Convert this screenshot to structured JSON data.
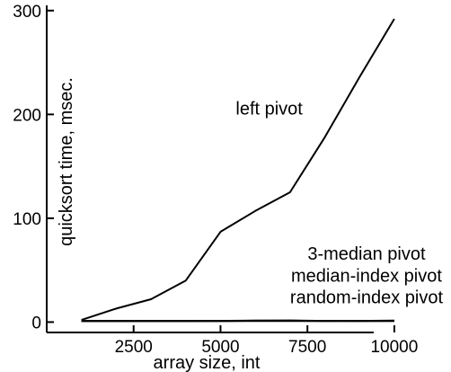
{
  "chart_data": {
    "type": "line",
    "title": "",
    "xlabel": "array size, int",
    "ylabel": "quicksort time, msec.",
    "xlim": [
      0,
      10700
    ],
    "ylim": [
      -10,
      305
    ],
    "xticks": [
      2500,
      5000,
      7500,
      10000
    ],
    "yticks": [
      0,
      100,
      200,
      300
    ],
    "grid": false,
    "series": [
      {
        "x": [
          1000,
          2000,
          3000,
          4000,
          5000,
          6000,
          7000,
          8000,
          9000,
          10000
        ],
        "values": [
          2,
          13,
          22,
          40,
          87,
          107,
          125,
          178,
          236,
          292
        ]
      },
      {
        "x": [
          1000,
          2000,
          3000,
          4000,
          5000,
          6000,
          7000,
          8000,
          9000,
          10000
        ],
        "values": [
          1,
          1,
          1,
          1,
          1,
          1,
          1,
          1,
          1,
          1
        ]
      },
      {
        "x": [
          1000,
          2000,
          3000,
          4000,
          5000,
          6000,
          7000,
          8000,
          9000,
          10000
        ],
        "values": [
          1,
          1,
          1,
          1,
          1.2,
          1.5,
          1.3,
          1.1,
          1.2,
          1.4
        ]
      },
      {
        "x": [
          1000,
          2000,
          3000,
          4000,
          5000,
          6000,
          7000,
          8000,
          9000,
          10000
        ],
        "values": [
          1,
          1,
          1,
          1,
          1,
          1.3,
          1.6,
          1.2,
          1.1,
          1.2
        ]
      }
    ],
    "annotations": [
      {
        "text": "left pivot",
        "x": 6400,
        "y": 200
      },
      {
        "text": "3-median pivot",
        "x": 9200,
        "y": 60
      },
      {
        "text": "median-index pivot",
        "x": 9200,
        "y": 39
      },
      {
        "text": "random-index pivot",
        "x": 9200,
        "y": 18
      }
    ]
  }
}
